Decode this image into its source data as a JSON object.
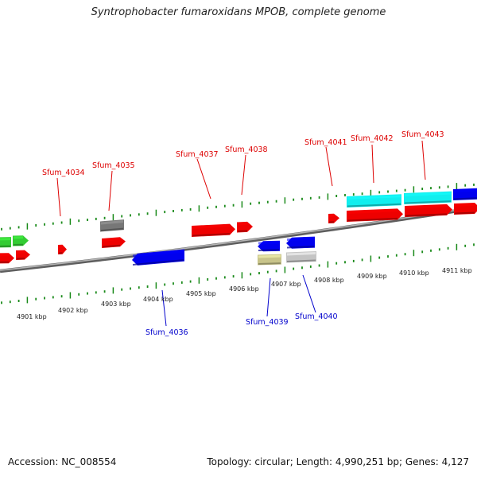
{
  "title": "Syntrophobacter fumaroxidans MPOB, complete genome",
  "footer": {
    "accession": "Accession: NC_008554",
    "summary": "Topology: circular; Length: 4,990,251 bp; Genes: 4,127"
  },
  "colors": {
    "forward_label": "#dd0000",
    "reverse_label": "#0000cc",
    "tick": "#1a8a1a",
    "backbone": "#808080"
  },
  "chart_data": {
    "type": "genome-map",
    "ruler_labels": [
      "4901 kbp",
      "4902 kbp",
      "4903 kbp",
      "4904 kbp",
      "4905 kbp",
      "4906 kbp",
      "4907 kbp",
      "4908 kbp",
      "4909 kbp",
      "4910 kbp",
      "4911 kbp"
    ],
    "forward_labels": [
      "Sfum_4034",
      "Sfum_4035",
      "Sfum_4037",
      "Sfum_4038",
      "Sfum_4041",
      "Sfum_4042",
      "Sfum_4043"
    ],
    "reverse_labels": [
      "Sfum_4036",
      "Sfum_4039",
      "Sfum_4040"
    ]
  }
}
